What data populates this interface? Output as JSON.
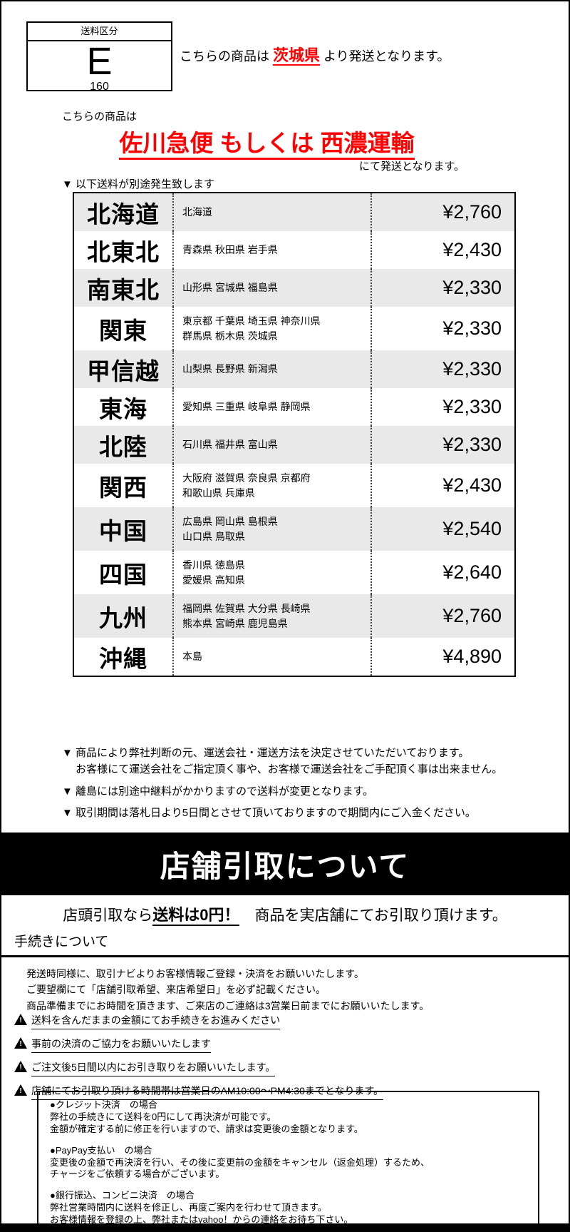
{
  "shipping_class": {
    "header": "送料区分",
    "code": "E",
    "size": "160"
  },
  "origin": {
    "prefix": "こちらの商品は ",
    "prefecture": "茨城県",
    "suffix": " より発送となります。"
  },
  "carrier": {
    "lead": "こちらの商品は",
    "name": "佐川急便 もしくは 西濃運輸",
    "tail": "にて発送となります。"
  },
  "fee_table": {
    "caption": "▼ 以下送料が別途発生致します",
    "rows": [
      {
        "region": "北海道",
        "prefectures": "北海道",
        "price": "¥2,760"
      },
      {
        "region": "北東北",
        "prefectures": "青森県 秋田県 岩手県",
        "price": "¥2,430"
      },
      {
        "region": "南東北",
        "prefectures": "山形県 宮城県 福島県",
        "price": "¥2,330"
      },
      {
        "region": "関東",
        "prefectures": "東京都 千葉県 埼玉県 神奈川県\n群馬県 栃木県 茨城県",
        "price": "¥2,330"
      },
      {
        "region": "甲信越",
        "prefectures": "山梨県 長野県 新潟県",
        "price": "¥2,330"
      },
      {
        "region": "東海",
        "prefectures": "愛知県 三重県 岐阜県 静岡県",
        "price": "¥2,330"
      },
      {
        "region": "北陸",
        "prefectures": "石川県 福井県 富山県",
        "price": "¥2,330"
      },
      {
        "region": "関西",
        "prefectures": "大阪府 滋賀県 奈良県 京都府\n和歌山県 兵庫県",
        "price": "¥2,430"
      },
      {
        "region": "中国",
        "prefectures": "広島県 岡山県 島根県\n山口県 鳥取県",
        "price": "¥2,540"
      },
      {
        "region": "四国",
        "prefectures": "香川県 徳島県\n愛媛県 高知県",
        "price": "¥2,640"
      },
      {
        "region": "九州",
        "prefectures": "福岡県 佐賀県 大分県 長崎県\n熊本県 宮崎県 鹿児島県",
        "price": "¥2,760"
      },
      {
        "region": "沖縄",
        "prefectures": "本島",
        "price": "¥4,890"
      }
    ]
  },
  "notes": [
    "▼ 商品により弊社判断の元、運送会社・運送方法を決定させていただいております。\n　 お客様にて運送会社をご指定頂く事や、お客様で運送会社をご手配頂く事は出来ません。",
    "▼ 離島には別途中継料がかかりますので送料が変更となります。",
    "▼ 取引期間は落札日より5日間とさせて頂いておりますので期間内にご入金ください。"
  ],
  "pickup": {
    "banner_title": "店舗引取について",
    "lead_prefix": "店頭引取なら",
    "lead_bold": "送料は0円！",
    "lead_suffix": "　商品を実店舗にてお引取り頂けます。",
    "section_title": "手続きについて",
    "procedure": "発送時同様に、取引ナビよりお客様情報ご登録・決済をお願いいたします。\nご要望欄にて「店舗引取希望、来店希望日」を必ず記載ください。\n商品準備までにお時間を頂きます、ご来店のご連絡は3営業日前までにお願いいたします。",
    "warnings": [
      "送料を含んだままの金額にてお手続きをお進みください",
      "事前の決済のご協力をお願いいたします",
      "ご注文後5日間以内にお引き取りをお願いいたします。",
      "店舗にてお引取り頂ける時間帯は営業日のAM10:00～PM4:30までとなります。"
    ]
  },
  "payment": {
    "sections": [
      {
        "title": "●クレジット決済　の場合",
        "body": "弊社の手続きにて送料を0円にして再決済が可能です。\n金額が確定する前に修正を行いますので、請求は変更後の金額となります。"
      },
      {
        "title": "●PayPay支払い　の場合",
        "body": "変更後の金額で再決済を行い、その後に変更前の金額をキャンセル（返金処理）するため、\nチャージをご依頼する場合がございます。"
      },
      {
        "title": "●銀行振込、コンビニ決済　の場合",
        "body": "弊社営業時間内に送料を修正し、再度ご案内を行わせて頂きます。\nお客様情報を登録の上、弊社またはyahoo！からの連絡をお待ち下さい。"
      }
    ]
  }
}
